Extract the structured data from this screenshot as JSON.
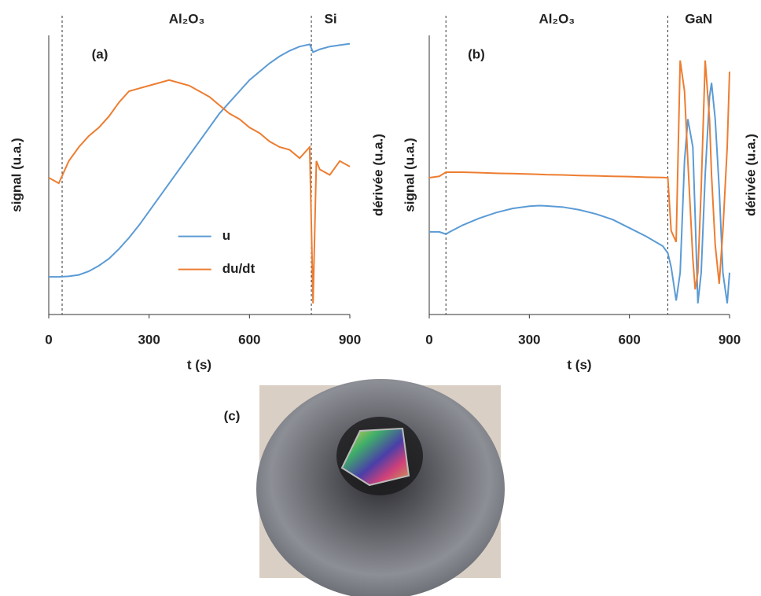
{
  "chart_data": [
    {
      "type": "line",
      "panel_label": "(a)",
      "xlabel": "t (s)",
      "ylabel": "signal (u.a.)",
      "y2label": "dérivée (u.a.)",
      "xlim": [
        0,
        900
      ],
      "xticks": [
        0,
        300,
        600,
        900
      ],
      "ylim": [
        0,
        1
      ],
      "y2lim": [
        0,
        1
      ],
      "vlines": [
        40,
        785
      ],
      "regions": [
        "Al₂O₃",
        "Si"
      ],
      "legend": "center",
      "x": [
        0,
        30,
        60,
        90,
        120,
        150,
        180,
        210,
        240,
        270,
        300,
        330,
        360,
        390,
        420,
        450,
        480,
        510,
        540,
        570,
        600,
        630,
        660,
        690,
        720,
        750,
        780,
        790,
        800,
        810,
        840,
        870,
        900
      ],
      "series": [
        {
          "name": "u",
          "color": "#5b9bd5",
          "values": [
            0.135,
            0.135,
            0.137,
            0.142,
            0.155,
            0.175,
            0.2,
            0.235,
            0.275,
            0.32,
            0.37,
            0.42,
            0.47,
            0.52,
            0.57,
            0.62,
            0.67,
            0.72,
            0.76,
            0.8,
            0.84,
            0.87,
            0.9,
            0.925,
            0.945,
            0.96,
            0.968,
            0.94,
            0.945,
            0.95,
            0.96,
            0.965,
            0.97
          ]
        },
        {
          "name": "du/dt",
          "color": "#ed7d31",
          "axis": "y2",
          "values": [
            0.49,
            0.47,
            0.55,
            0.6,
            0.64,
            0.67,
            0.71,
            0.76,
            0.8,
            0.81,
            0.82,
            0.83,
            0.84,
            0.83,
            0.82,
            0.8,
            0.78,
            0.75,
            0.72,
            0.7,
            0.67,
            0.65,
            0.62,
            0.6,
            0.59,
            0.56,
            0.6,
            0.04,
            0.55,
            0.52,
            0.5,
            0.55,
            0.53
          ]
        }
      ]
    },
    {
      "type": "line",
      "panel_label": "(b)",
      "xlabel": "t (s)",
      "ylabel": "signal (u.a.)",
      "y2label": "dérivée (u.a.)",
      "xlim": [
        0,
        900
      ],
      "xticks": [
        0,
        300,
        600,
        900
      ],
      "ylim": [
        0,
        1
      ],
      "y2lim": [
        0,
        1
      ],
      "vlines": [
        50,
        715
      ],
      "regions": [
        "Al₂O₃",
        "GaN"
      ],
      "x": [
        0,
        30,
        50,
        60,
        100,
        150,
        200,
        250,
        300,
        330,
        350,
        400,
        450,
        500,
        550,
        600,
        650,
        700,
        715,
        725,
        740,
        752,
        765,
        775,
        790,
        797,
        805,
        815,
        827,
        840,
        846,
        857,
        869,
        880,
        893,
        900
      ],
      "series": [
        {
          "name": "u",
          "color": "#5b9bd5",
          "values": [
            0.296,
            0.296,
            0.288,
            0.295,
            0.32,
            0.345,
            0.365,
            0.38,
            0.388,
            0.39,
            0.389,
            0.385,
            0.375,
            0.36,
            0.34,
            0.31,
            0.28,
            0.245,
            0.22,
            0.17,
            0.05,
            0.15,
            0.55,
            0.7,
            0.6,
            0.35,
            0.04,
            0.15,
            0.5,
            0.78,
            0.83,
            0.7,
            0.45,
            0.15,
            0.04,
            0.15
          ]
        },
        {
          "name": "du/dt",
          "color": "#ed7d31",
          "axis": "y2",
          "values": [
            0.49,
            0.495,
            0.51,
            0.51,
            0.51,
            0.508,
            0.506,
            0.505,
            0.503,
            0.502,
            0.501,
            0.5,
            0.498,
            0.497,
            0.495,
            0.494,
            0.492,
            0.491,
            0.49,
            0.3,
            0.26,
            0.91,
            0.8,
            0.55,
            0.2,
            0.09,
            0.15,
            0.45,
            0.91,
            0.7,
            0.5,
            0.25,
            0.11,
            0.3,
            0.6,
            0.87
          ]
        }
      ]
    }
  ],
  "photo": {
    "label": "(c)"
  }
}
